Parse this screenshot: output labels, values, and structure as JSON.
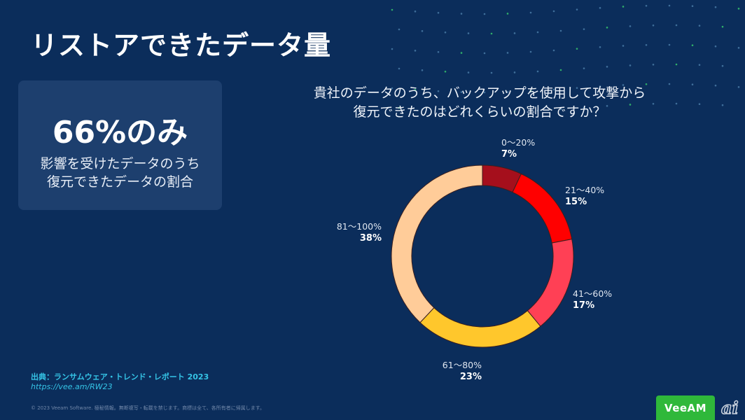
{
  "slide": {
    "title": "リストアできたデータ量"
  },
  "stat_card": {
    "value": "66%のみ",
    "desc_line1": "影響を受けたデータのうち",
    "desc_line2": "復元できたデータの割合"
  },
  "question": {
    "line1": "貴社のデータのうち、バックアップを使用して攻撃から",
    "line2": "復元できたのはどれくらいの割合ですか？"
  },
  "chart_data": {
    "type": "pie",
    "variant": "donut",
    "title": "貴社のデータのうち、バックアップを使用して攻撃から復元できたのはどれくらいの割合ですか？",
    "categories": [
      "0〜20%",
      "21〜40%",
      "41〜60%",
      "61〜80%",
      "81〜100%"
    ],
    "values": [
      7,
      15,
      17,
      23,
      38
    ],
    "labels": [
      "7%",
      "15%",
      "17%",
      "23%",
      "38%"
    ],
    "colors": [
      "#a50f1c",
      "#ff0000",
      "#ff4055",
      "#ffc72c",
      "#ffcc99"
    ],
    "start": "top, clockwise",
    "unit": "%"
  },
  "footer": {
    "source_prefix": "出典：",
    "source_title": "ランサムウェア・トレンド・レポート 2023",
    "source_url": "https://vee.am/RW23",
    "copyright": "© 2023 Veeam Software. 極秘情報。無断複写・転載を禁じます。商標は全て、各所有者に帰属します。",
    "logo_text": "VeeAM",
    "watermark": "ai"
  }
}
